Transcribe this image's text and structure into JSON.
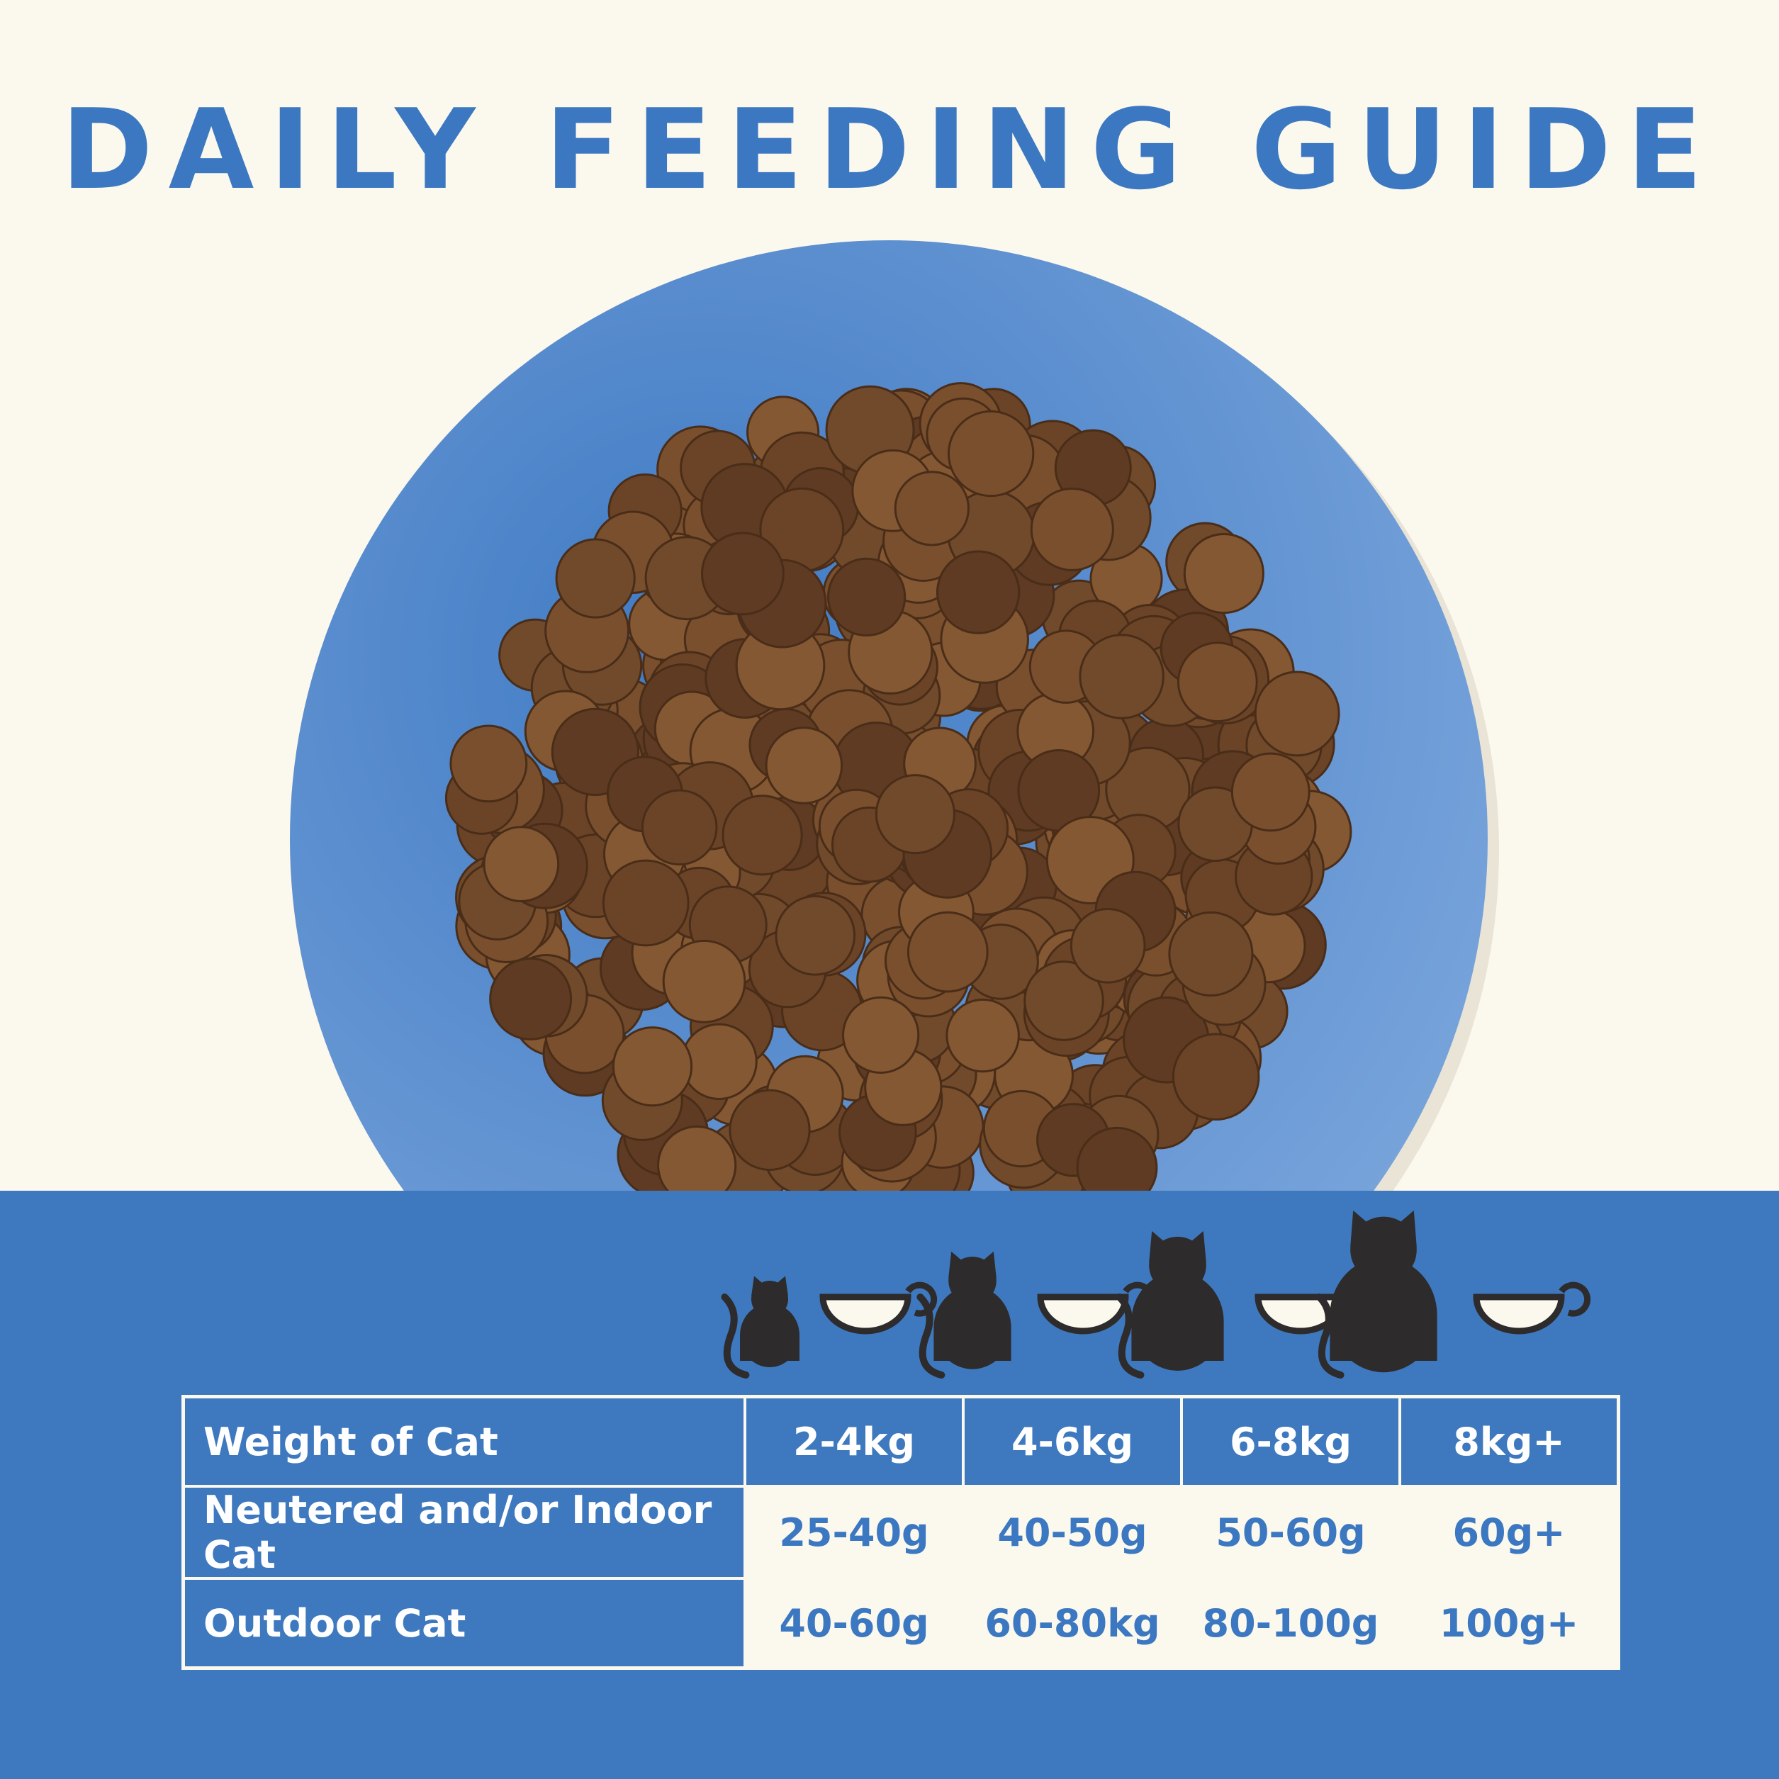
{
  "title": "DAILY FEEDING GUIDE",
  "table": {
    "header": [
      "Weight of Cat",
      "2-4kg",
      "4-6kg",
      "6-8kg",
      "8kg+"
    ],
    "rows": [
      [
        "Neutered and/or Indoor Cat",
        "25-40g",
        "40-50g",
        "50-60g",
        "60g+"
      ],
      [
        "Outdoor Cat",
        "40-60g",
        "60-80kg",
        "80-100g",
        "100g+"
      ]
    ]
  }
}
